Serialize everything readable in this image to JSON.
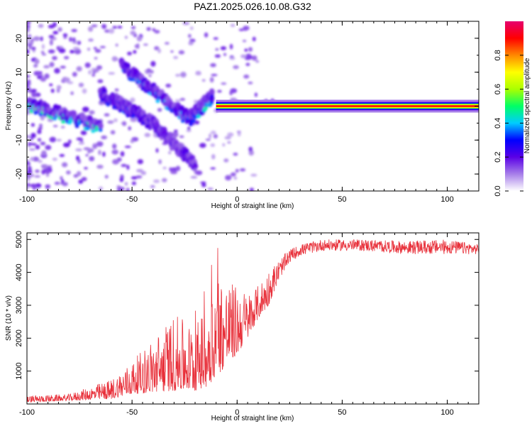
{
  "figure": {
    "title": "PAZ1.2025.026.10.08.G32"
  },
  "chart_data": [
    {
      "type": "heatmap",
      "xlabel": "Height of straight line (km)",
      "ylabel": "Frequency (Hz)",
      "xlim": [
        -100,
        115
      ],
      "ylim": [
        -25,
        25
      ],
      "xticks": [
        -100,
        -50,
        0,
        50,
        100
      ],
      "yticks": [
        -20,
        -10,
        0,
        10,
        20
      ],
      "colorbar": {
        "label": "Normalized spectral amplitude",
        "range": [
          0,
          1
        ],
        "ticks": [
          0.0,
          0.2,
          0.4,
          0.6,
          0.8
        ],
        "tick_labels": [
          "0.0",
          "0.2",
          "0.4",
          "0.6",
          "0.8"
        ],
        "stops": [
          "#ffffff",
          "#a77fe9",
          "#5a00e6",
          "#0000ff",
          "#00ccff",
          "#00ff66",
          "#aaff00",
          "#ffff00",
          "#ff8800",
          "#ff0000",
          "#e6006e"
        ]
      },
      "features": [
        {
          "kind": "band",
          "x": [
            -10,
            115
          ],
          "y_center": 0,
          "amplitude": 0.9
        },
        {
          "kind": "chirp",
          "x": [
            -100,
            -65
          ],
          "y": [
            0,
            -7
          ],
          "amplitude": 0.45
        },
        {
          "kind": "chirp",
          "x": [
            -65,
            -40
          ],
          "y": [
            3,
            -6
          ],
          "amplitude": 0.3
        },
        {
          "kind": "chirp",
          "x": [
            -55,
            -22
          ],
          "y": [
            11,
            -5
          ],
          "amplitude": 0.35
        },
        {
          "kind": "chirp",
          "x": [
            -42,
            -20
          ],
          "y": [
            -5,
            -18
          ],
          "amplitude": 0.2
        },
        {
          "kind": "chirp",
          "x": [
            -22,
            -12
          ],
          "y": [
            -4,
            2
          ],
          "amplitude": 0.4
        },
        {
          "kind": "patch",
          "x": [
            0,
            18
          ],
          "y_center": 0.5,
          "amplitude": 0.45
        }
      ]
    },
    {
      "type": "line",
      "xlabel": "Height of straight line (km)",
      "ylabel": "SNR (10 * v/v)",
      "xlim": [
        -100,
        115
      ],
      "ylim": [
        0,
        5200
      ],
      "xticks": [
        -100,
        -50,
        0,
        50,
        100
      ],
      "yticks": [
        1000,
        2000,
        3000,
        4000,
        5000
      ],
      "color": "#e8303a",
      "envelope": [
        {
          "x": -100,
          "lo": 50,
          "hi": 250
        },
        {
          "x": -80,
          "lo": 100,
          "hi": 300
        },
        {
          "x": -60,
          "lo": 150,
          "hi": 750
        },
        {
          "x": -50,
          "lo": 300,
          "hi": 1300
        },
        {
          "x": -40,
          "lo": 350,
          "hi": 2000
        },
        {
          "x": -30,
          "lo": 400,
          "hi": 2700
        },
        {
          "x": -20,
          "lo": 400,
          "hi": 2400
        },
        {
          "x": -15,
          "lo": 500,
          "hi": 3000
        },
        {
          "x": -10,
          "lo": 800,
          "hi": 4200
        },
        {
          "x": -5,
          "lo": 1200,
          "hi": 3800
        },
        {
          "x": 0,
          "lo": 1500,
          "hi": 3600
        },
        {
          "x": 5,
          "lo": 2000,
          "hi": 3400
        },
        {
          "x": 10,
          "lo": 2600,
          "hi": 3600
        },
        {
          "x": 15,
          "lo": 3000,
          "hi": 4100
        },
        {
          "x": 20,
          "lo": 3800,
          "hi": 4400
        },
        {
          "x": 25,
          "lo": 4300,
          "hi": 4700
        },
        {
          "x": 30,
          "lo": 4500,
          "hi": 4850
        },
        {
          "x": 40,
          "lo": 4650,
          "hi": 5000
        },
        {
          "x": 60,
          "lo": 4650,
          "hi": 5000
        },
        {
          "x": 80,
          "lo": 4550,
          "hi": 4950
        },
        {
          "x": 100,
          "lo": 4550,
          "hi": 5000
        },
        {
          "x": 115,
          "lo": 4550,
          "hi": 4850
        }
      ]
    }
  ]
}
